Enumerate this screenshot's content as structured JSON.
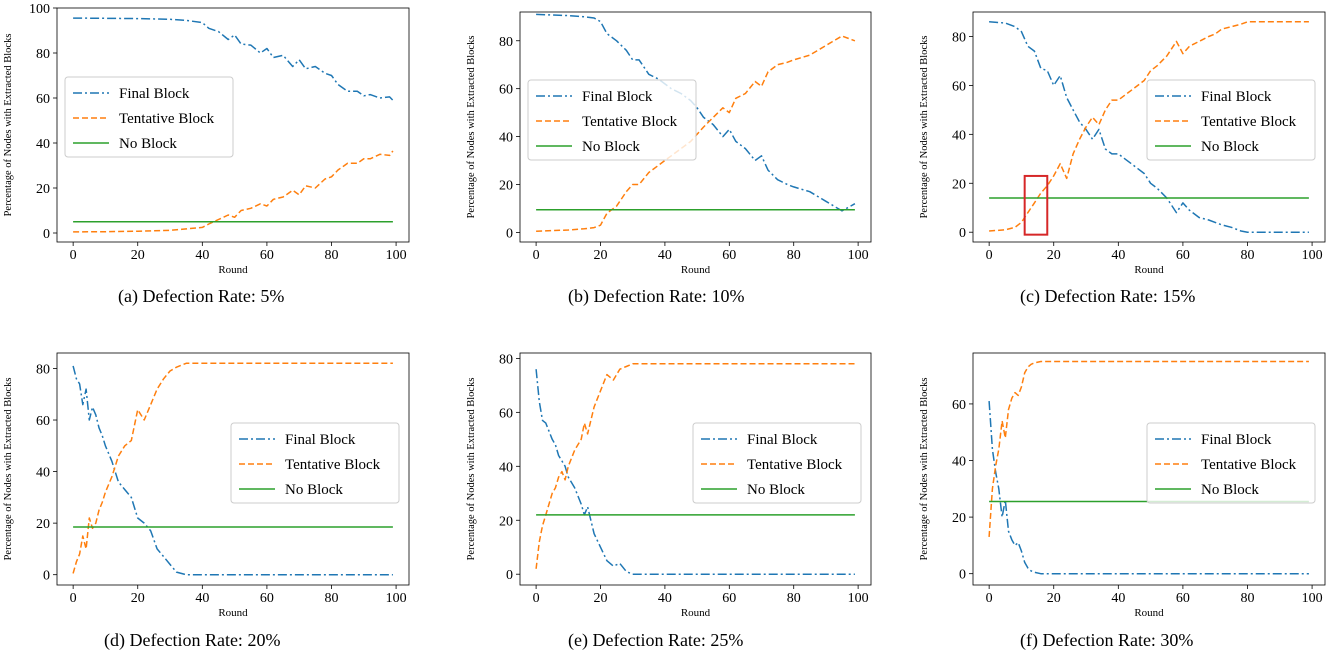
{
  "figure": {
    "legend_labels": [
      "Final Block",
      "Tentative Block",
      "No Block"
    ],
    "colors": {
      "final": "#1f77b4",
      "tentative": "#ff7f0e",
      "none": "#2ca02c",
      "highlight": "#d62728"
    }
  },
  "chart_data": [
    {
      "type": "line",
      "caption": "(a) Defection Rate: 5%",
      "xlabel": "Round",
      "ylabel": "Percentage of Nodes with Extracted Blocks",
      "xlim": [
        -5,
        104
      ],
      "ylim": [
        -4,
        100
      ],
      "xticks": [
        0,
        20,
        40,
        60,
        80,
        100
      ],
      "yticks": [
        0,
        20,
        40,
        60,
        80,
        100
      ],
      "legend_position": "center-left",
      "series": [
        {
          "name": "Final Block",
          "style": "dashdot",
          "x": [
            0,
            10,
            20,
            30,
            35,
            40,
            42,
            45,
            48,
            50,
            52,
            55,
            58,
            60,
            62,
            65,
            68,
            70,
            72,
            75,
            78,
            80,
            82,
            85,
            88,
            90,
            92,
            95,
            98,
            99
          ],
          "y": [
            95.5,
            95.4,
            95.3,
            95,
            94.5,
            93.5,
            91,
            89.5,
            86,
            88,
            84,
            83.5,
            80,
            82,
            78,
            79,
            74,
            77,
            73,
            74,
            71,
            70,
            66,
            63,
            63,
            61,
            61.5,
            60,
            60.5,
            59
          ]
        },
        {
          "name": "Tentative Block",
          "style": "dashed",
          "x": [
            0,
            10,
            20,
            30,
            35,
            40,
            42,
            45,
            48,
            50,
            52,
            55,
            58,
            60,
            62,
            65,
            68,
            70,
            72,
            75,
            78,
            80,
            82,
            85,
            88,
            90,
            92,
            95,
            98,
            99
          ],
          "y": [
            0.5,
            0.6,
            0.8,
            1.2,
            1.8,
            2.5,
            4,
            6,
            8,
            7,
            10,
            11,
            13,
            12,
            15,
            16,
            19,
            17,
            21,
            20,
            24,
            25,
            28,
            31,
            31,
            33,
            33,
            35,
            34.5,
            36.5
          ]
        },
        {
          "name": "No Block",
          "style": "solid",
          "x": [
            0,
            99
          ],
          "y": [
            5,
            5
          ]
        }
      ]
    },
    {
      "type": "line",
      "caption": "(b) Defection Rate: 10%",
      "xlabel": "Round",
      "ylabel": "Percentage of Nodes with Extracted Blocks",
      "xlim": [
        -5,
        104
      ],
      "ylim": [
        -4,
        92
      ],
      "xticks": [
        0,
        20,
        40,
        60,
        80,
        100
      ],
      "yticks": [
        0,
        20,
        40,
        60,
        80
      ],
      "legend_position": "upper-left",
      "series": [
        {
          "name": "Final Block",
          "style": "dashdot",
          "x": [
            0,
            10,
            15,
            18,
            20,
            22,
            25,
            28,
            30,
            32,
            35,
            38,
            40,
            42,
            45,
            48,
            50,
            52,
            55,
            58,
            60,
            62,
            65,
            68,
            70,
            72,
            75,
            78,
            80,
            85,
            90,
            95,
            99
          ],
          "y": [
            91,
            90.5,
            90,
            89.5,
            88,
            83,
            80,
            76,
            72,
            72,
            66,
            64,
            62,
            60,
            58,
            55,
            52,
            48,
            45,
            40,
            43,
            38,
            35,
            30,
            32,
            26,
            22,
            20,
            19,
            17,
            13,
            9,
            12
          ]
        },
        {
          "name": "Tentative Block",
          "style": "dashed",
          "x": [
            0,
            10,
            15,
            18,
            20,
            22,
            25,
            28,
            30,
            32,
            35,
            38,
            40,
            42,
            45,
            48,
            50,
            52,
            55,
            58,
            60,
            62,
            65,
            68,
            70,
            72,
            75,
            78,
            80,
            85,
            90,
            95,
            99
          ],
          "y": [
            0.5,
            1,
            1.5,
            2,
            3,
            8,
            11,
            17,
            20,
            20,
            25,
            28,
            30,
            32,
            35,
            38,
            41,
            44,
            48,
            52,
            50,
            56,
            58,
            63,
            61,
            67,
            70,
            71,
            72,
            74,
            78,
            82,
            80
          ]
        },
        {
          "name": "No Block",
          "style": "solid",
          "x": [
            0,
            99
          ],
          "y": [
            9.5,
            9.5
          ]
        }
      ]
    },
    {
      "type": "line",
      "caption": "(c) Defection Rate: 15%",
      "xlabel": "Round",
      "ylabel": "Percentage of Nodes with Extracted Blocks",
      "xlim": [
        -5,
        104
      ],
      "ylim": [
        -4,
        90
      ],
      "xticks": [
        0,
        20,
        40,
        60,
        80,
        100
      ],
      "yticks": [
        0,
        20,
        40,
        60,
        80
      ],
      "legend_position": "center-right",
      "annotation": {
        "type": "rectangle",
        "x0": 11,
        "x1": 18,
        "y0": -1,
        "y1": 23
      },
      "series": [
        {
          "name": "Final Block",
          "style": "dashdot",
          "x": [
            0,
            5,
            8,
            10,
            12,
            14,
            16,
            18,
            20,
            22,
            24,
            26,
            28,
            30,
            32,
            34,
            36,
            38,
            40,
            42,
            45,
            48,
            50,
            52,
            55,
            58,
            60,
            62,
            65,
            68,
            70,
            72,
            75,
            78,
            80,
            85,
            90,
            95,
            99
          ],
          "y": [
            86,
            85.5,
            84,
            82,
            76,
            74,
            67,
            66,
            60,
            64,
            55,
            50,
            45,
            42,
            38,
            42,
            34,
            32,
            32,
            30,
            27,
            24,
            20,
            18,
            14,
            8,
            12,
            9,
            6,
            5,
            4,
            3,
            2,
            0.5,
            0,
            0,
            0,
            0,
            0
          ]
        },
        {
          "name": "Tentative Block",
          "style": "dashed",
          "x": [
            0,
            5,
            8,
            10,
            12,
            14,
            16,
            18,
            20,
            22,
            24,
            26,
            28,
            30,
            32,
            34,
            36,
            38,
            40,
            42,
            45,
            48,
            50,
            52,
            55,
            58,
            60,
            62,
            65,
            68,
            70,
            72,
            75,
            78,
            80,
            85,
            90,
            95,
            99
          ],
          "y": [
            0.5,
            1,
            2,
            4,
            8,
            12,
            16,
            19,
            23,
            28,
            22,
            32,
            38,
            43,
            47,
            44,
            50,
            54,
            54,
            56,
            59,
            62,
            66,
            68,
            72,
            78,
            73,
            76,
            78,
            80,
            81,
            83,
            84,
            85,
            86,
            86,
            86,
            86,
            86
          ]
        },
        {
          "name": "No Block",
          "style": "solid",
          "x": [
            0,
            99
          ],
          "y": [
            14,
            14
          ]
        }
      ]
    },
    {
      "type": "line",
      "caption": "(d) Defection Rate: 20%",
      "xlabel": "Round",
      "ylabel": "Percentage of Nodes with Extracted Blocks",
      "xlim": [
        -5,
        104
      ],
      "ylim": [
        -4,
        86
      ],
      "xticks": [
        0,
        20,
        40,
        60,
        80,
        100
      ],
      "yticks": [
        0,
        20,
        40,
        60,
        80
      ],
      "legend_position": "center-right",
      "series": [
        {
          "name": "Final Block",
          "style": "dashdot",
          "x": [
            0,
            1,
            2,
            3,
            4,
            5,
            6,
            7,
            8,
            9,
            10,
            12,
            14,
            16,
            18,
            20,
            22,
            24,
            26,
            28,
            30,
            32,
            35,
            40,
            50,
            60,
            70,
            80,
            90,
            99
          ],
          "y": [
            81,
            76,
            74,
            66,
            72,
            60,
            65,
            62,
            57,
            54,
            50,
            44,
            36,
            33,
            30,
            22,
            20,
            17,
            10,
            7,
            4,
            1,
            0,
            0,
            0,
            0,
            0,
            0,
            0,
            0
          ]
        },
        {
          "name": "Tentative Block",
          "style": "dashed",
          "x": [
            0,
            1,
            2,
            3,
            4,
            5,
            6,
            7,
            8,
            9,
            10,
            12,
            14,
            16,
            18,
            20,
            22,
            24,
            26,
            28,
            30,
            32,
            35,
            40,
            50,
            60,
            70,
            80,
            90,
            99
          ],
          "y": [
            0.5,
            5,
            8,
            15,
            10,
            22,
            18,
            20,
            25,
            28,
            32,
            38,
            46,
            50,
            52,
            64,
            60,
            66,
            72,
            76,
            79,
            80.5,
            82,
            82,
            82,
            82,
            82,
            82,
            82,
            82
          ]
        },
        {
          "name": "No Block",
          "style": "solid",
          "x": [
            0,
            99
          ],
          "y": [
            18.5,
            18.5
          ]
        }
      ]
    },
    {
      "type": "line",
      "caption": "(e) Defection Rate: 25%",
      "xlabel": "Round",
      "ylabel": "Percentage of Nodes with Extracted Blocks",
      "xlim": [
        -5,
        104
      ],
      "ylim": [
        -4,
        82
      ],
      "xticks": [
        0,
        20,
        40,
        60,
        80,
        100
      ],
      "yticks": [
        0,
        20,
        40,
        60,
        80
      ],
      "legend_position": "center-right",
      "series": [
        {
          "name": "Final Block",
          "style": "dashdot",
          "x": [
            0,
            1,
            2,
            3,
            4,
            5,
            6,
            7,
            8,
            9,
            10,
            12,
            14,
            15,
            16,
            18,
            20,
            22,
            24,
            26,
            28,
            30,
            40,
            50,
            60,
            70,
            80,
            90,
            99
          ],
          "y": [
            76,
            64,
            57,
            56,
            53,
            50,
            48,
            44,
            42,
            40,
            36,
            32,
            26,
            22,
            25,
            15,
            10,
            5,
            3,
            4,
            1,
            0,
            0,
            0,
            0,
            0,
            0,
            0,
            0
          ]
        },
        {
          "name": "Tentative Block",
          "style": "dashed",
          "x": [
            0,
            1,
            2,
            3,
            4,
            5,
            6,
            7,
            8,
            9,
            10,
            12,
            14,
            15,
            16,
            18,
            20,
            22,
            24,
            26,
            28,
            30,
            40,
            50,
            60,
            70,
            80,
            90,
            99
          ],
          "y": [
            2,
            12,
            18,
            22,
            26,
            30,
            32,
            36,
            38,
            35,
            40,
            46,
            50,
            56,
            52,
            62,
            68,
            74,
            72,
            76,
            77,
            78,
            78,
            78,
            78,
            78,
            78,
            78,
            78
          ]
        },
        {
          "name": "No Block",
          "style": "solid",
          "x": [
            0,
            99
          ],
          "y": [
            22,
            22
          ]
        }
      ]
    },
    {
      "type": "line",
      "caption": "(f) Defection Rate: 30%",
      "xlabel": "Round",
      "ylabel": "Percentage of Nodes with Extracted Blocks",
      "xlim": [
        -5,
        104
      ],
      "ylim": [
        -4,
        78
      ],
      "xticks": [
        0,
        20,
        40,
        60,
        80,
        100
      ],
      "yticks": [
        0,
        20,
        40,
        60
      ],
      "legend_position": "center-right",
      "series": [
        {
          "name": "Final Block",
          "style": "dashdot",
          "x": [
            0,
            1,
            2,
            3,
            4,
            5,
            6,
            7,
            8,
            9,
            10,
            11,
            12,
            13,
            14,
            16,
            20,
            30,
            40,
            50,
            60,
            70,
            80,
            90,
            99
          ],
          "y": [
            61,
            44,
            36,
            30,
            20,
            26,
            15,
            12,
            10,
            11,
            8,
            4,
            2,
            1,
            0.5,
            0,
            0,
            0,
            0,
            0,
            0,
            0,
            0,
            0,
            0
          ]
        },
        {
          "name": "Tentative Block",
          "style": "dashed",
          "x": [
            0,
            1,
            2,
            3,
            4,
            5,
            6,
            7,
            8,
            9,
            10,
            11,
            12,
            13,
            14,
            16,
            20,
            30,
            40,
            50,
            60,
            70,
            80,
            90,
            99
          ],
          "y": [
            13,
            30,
            38,
            44,
            54,
            48,
            58,
            62,
            64,
            63,
            66,
            71,
            73,
            74,
            74.5,
            75,
            75,
            75,
            75,
            75,
            75,
            75,
            75,
            75,
            75
          ]
        },
        {
          "name": "No Block",
          "style": "solid",
          "x": [
            0,
            99
          ],
          "y": [
            25.5,
            25.5
          ]
        }
      ]
    }
  ]
}
